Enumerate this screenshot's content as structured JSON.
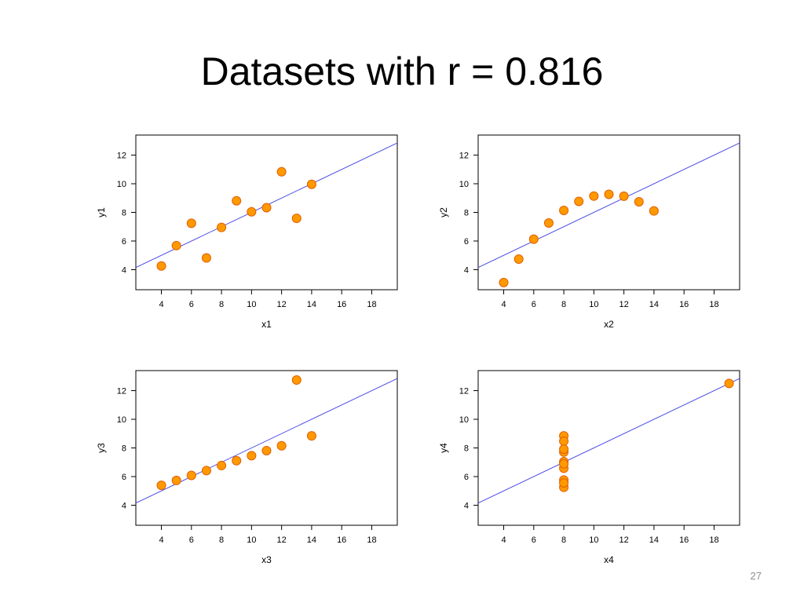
{
  "slide": {
    "title": "Datasets with r = 0.816",
    "page_number": "27"
  },
  "colors": {
    "point_fill": "#ff9900",
    "point_stroke": "#e06000",
    "regression_line": "#4c4ce6",
    "axes": "#000000"
  },
  "chart_data": [
    {
      "type": "scatter",
      "xlabel": "x1",
      "ylabel": "y1",
      "xticks": [
        4,
        6,
        8,
        10,
        12,
        14,
        16,
        18
      ],
      "yticks": [
        4,
        6,
        8,
        10,
        12
      ],
      "xlim": [
        2.3,
        19.7
      ],
      "ylim": [
        2.6,
        13.4
      ],
      "grid": false,
      "regression": {
        "intercept": 3.0,
        "slope": 0.5
      },
      "points": [
        [
          4,
          4.26
        ],
        [
          5,
          5.68
        ],
        [
          6,
          7.24
        ],
        [
          7,
          4.82
        ],
        [
          8,
          6.95
        ],
        [
          9,
          8.81
        ],
        [
          10,
          8.04
        ],
        [
          11,
          8.33
        ],
        [
          12,
          10.84
        ],
        [
          13,
          7.58
        ],
        [
          14,
          9.96
        ]
      ]
    },
    {
      "type": "scatter",
      "xlabel": "x2",
      "ylabel": "y2",
      "xticks": [
        4,
        6,
        8,
        10,
        12,
        14,
        16,
        18
      ],
      "yticks": [
        4,
        6,
        8,
        10,
        12
      ],
      "xlim": [
        2.3,
        19.7
      ],
      "ylim": [
        2.6,
        13.4
      ],
      "grid": false,
      "regression": {
        "intercept": 3.0,
        "slope": 0.5
      },
      "points": [
        [
          4,
          3.1
        ],
        [
          5,
          4.74
        ],
        [
          6,
          6.13
        ],
        [
          7,
          7.26
        ],
        [
          8,
          8.14
        ],
        [
          9,
          8.77
        ],
        [
          10,
          9.14
        ],
        [
          11,
          9.26
        ],
        [
          12,
          9.13
        ],
        [
          13,
          8.74
        ],
        [
          14,
          8.1
        ]
      ]
    },
    {
      "type": "scatter",
      "xlabel": "x3",
      "ylabel": "y3",
      "xticks": [
        4,
        6,
        8,
        10,
        12,
        14,
        16,
        18
      ],
      "yticks": [
        4,
        6,
        8,
        10,
        12
      ],
      "xlim": [
        2.3,
        19.7
      ],
      "ylim": [
        2.6,
        13.4
      ],
      "grid": false,
      "regression": {
        "intercept": 3.0,
        "slope": 0.5
      },
      "points": [
        [
          4,
          5.39
        ],
        [
          5,
          5.73
        ],
        [
          6,
          6.08
        ],
        [
          7,
          6.42
        ],
        [
          8,
          6.77
        ],
        [
          9,
          7.11
        ],
        [
          10,
          7.46
        ],
        [
          11,
          7.81
        ],
        [
          12,
          8.15
        ],
        [
          13,
          12.74
        ],
        [
          14,
          8.84
        ]
      ]
    },
    {
      "type": "scatter",
      "xlabel": "x4",
      "ylabel": "y4",
      "xticks": [
        4,
        6,
        8,
        10,
        12,
        14,
        16,
        18
      ],
      "yticks": [
        4,
        6,
        8,
        10,
        12
      ],
      "xlim": [
        2.3,
        19.7
      ],
      "ylim": [
        2.6,
        13.4
      ],
      "grid": false,
      "regression": {
        "intercept": 3.0,
        "slope": 0.5
      },
      "points": [
        [
          8,
          6.58
        ],
        [
          8,
          5.76
        ],
        [
          8,
          7.71
        ],
        [
          8,
          8.84
        ],
        [
          8,
          8.47
        ],
        [
          8,
          7.04
        ],
        [
          8,
          5.25
        ],
        [
          19,
          12.5
        ],
        [
          8,
          5.56
        ],
        [
          8,
          7.91
        ],
        [
          8,
          6.89
        ]
      ]
    }
  ]
}
